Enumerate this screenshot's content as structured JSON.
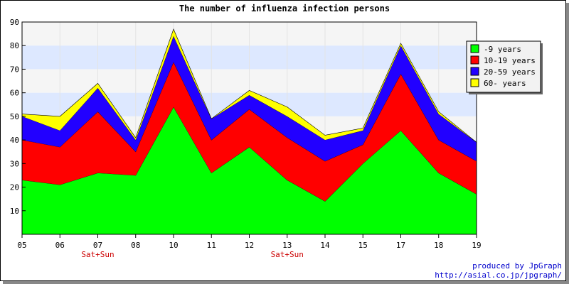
{
  "chart_data": {
    "type": "area",
    "stacked": true,
    "title": "The number of influenza infection persons",
    "categories": [
      "05",
      "06",
      "07",
      "08",
      "10",
      "11",
      "12",
      "13",
      "14",
      "15",
      "17",
      "18",
      "19"
    ],
    "category_notes": [
      {
        "category": "07",
        "label": "Sat+Sun"
      },
      {
        "category": "13",
        "label": "Sat+Sun"
      }
    ],
    "ylim": [
      0,
      90
    ],
    "yticks": [
      10,
      20,
      30,
      40,
      50,
      60,
      70,
      80,
      90
    ],
    "series": [
      {
        "name": "-9 years",
        "color": "#00ff00",
        "values": [
          23,
          21,
          26,
          25,
          54,
          26,
          37,
          23,
          14,
          30,
          44,
          26,
          17
        ]
      },
      {
        "name": "10-19 years",
        "color": "#ff0000",
        "values": [
          17,
          16,
          26,
          10,
          19,
          14,
          16,
          18,
          17,
          8,
          24,
          14,
          14
        ]
      },
      {
        "name": "20-59 years",
        "color": "#2200ff",
        "values": [
          10,
          7,
          10,
          5,
          11,
          9,
          6,
          9,
          9,
          6,
          12,
          11,
          8
        ]
      },
      {
        "name": "60- years",
        "color": "#ffff00",
        "values": [
          1,
          6,
          2,
          1,
          3,
          0,
          2,
          4,
          2,
          1,
          1,
          1,
          0
        ]
      }
    ],
    "legend_position": "top-right",
    "grid": true,
    "band_colors": [
      "#f5f5f5",
      "#dde8ff"
    ]
  },
  "credit": {
    "line1": "produced by JpGraph",
    "line2": "http://asial.co.jp/jpgraph/"
  }
}
